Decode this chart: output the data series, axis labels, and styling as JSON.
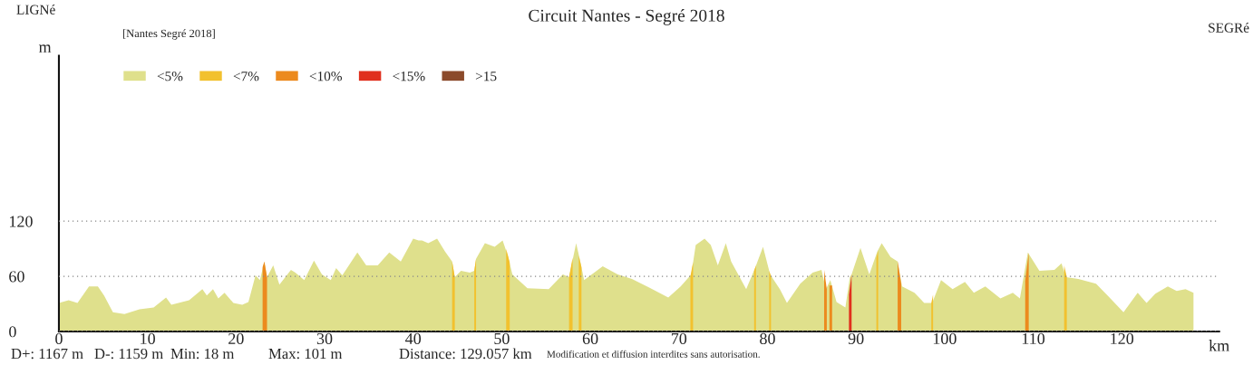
{
  "chart_data": {
    "type": "area",
    "title": "Circuit Nantes - Segré 2018",
    "xlabel": "km",
    "ylabel": "m",
    "xlim": [
      0,
      131
    ],
    "ylim": [
      0,
      300
    ],
    "xticks": [
      0,
      10,
      20,
      30,
      40,
      50,
      60,
      70,
      80,
      90,
      100,
      110,
      120
    ],
    "yticks": [
      0,
      60,
      120
    ],
    "grid": "y",
    "legend": "top left",
    "series": [
      {
        "name": "<5%",
        "color": "#dfe08c",
        "x": [
          0,
          1.1,
          2.1,
          3.4,
          4.4,
          5.1,
          6.1,
          7.4,
          9.1,
          10.7,
          12.1,
          12.7,
          14.7,
          16.2,
          16.7,
          17.4,
          18.0,
          18.7,
          19.7,
          20.7,
          21.4,
          22.2,
          22.7,
          23.2,
          23.5,
          24.2,
          24.9,
          26.2,
          26.7,
          27.7,
          28.8,
          29.7,
          30.7,
          31.3,
          32.0,
          33.7,
          34.7,
          36.0,
          37.3,
          38.6,
          40.0,
          40.6,
          41.0,
          41.7,
          42.7,
          43.6,
          44.4,
          44.7,
          45.4,
          46.4,
          46.9,
          47.1,
          48.1,
          49.2,
          50.1,
          50.7,
          51.2,
          52.9,
          55.3,
          56.9,
          57.6,
          58.4,
          58.8,
          59.3,
          61.4,
          63.1,
          64.7,
          66.8,
          68.8,
          70.2,
          71.4,
          71.9,
          72.9,
          73.6,
          74.4,
          75.3,
          75.9,
          77.6,
          78.6,
          79.5,
          80.3,
          81.4,
          82.2,
          83.7,
          85.1,
          86.1,
          86.6,
          87.1,
          87.8,
          88.8,
          89.3,
          89.5,
          90.5,
          91.5,
          92.4,
          92.9,
          93.9,
          94.7,
          95.2,
          96.6,
          97.7,
          98.6,
          99.6,
          100.9,
          102.3,
          103.3,
          104.6,
          106.3,
          107.7,
          108.5,
          109.4,
          110.7,
          112.4,
          113.2,
          113.7,
          115.1,
          117.1,
          118.4,
          120.2,
          121.8,
          122.8,
          123.8,
          125.2,
          126.2,
          127.2,
          128.1
        ],
        "values": [
          31,
          34,
          31,
          49,
          49,
          39,
          21,
          19,
          24,
          26,
          37,
          29,
          34,
          46,
          39,
          46,
          36,
          42,
          31,
          29,
          32,
          61,
          56,
          76,
          59,
          72,
          51,
          67,
          64,
          56,
          77,
          62,
          56,
          69,
          61,
          86,
          72,
          72,
          86,
          76,
          101,
          99,
          99,
          96,
          101,
          87,
          76,
          59,
          66,
          64,
          66,
          79,
          96,
          92,
          99,
          82,
          62,
          47,
          46,
          62,
          59,
          96,
          79,
          56,
          71,
          62,
          57,
          47,
          37,
          49,
          62,
          94,
          101,
          94,
          72,
          96,
          76,
          46,
          69,
          92,
          62,
          46,
          31,
          52,
          64,
          67,
          46,
          56,
          32,
          26,
          59,
          62,
          91,
          62,
          87,
          96,
          81,
          76,
          49,
          42,
          31,
          31,
          56,
          46,
          54,
          42,
          49,
          36,
          42,
          36,
          86,
          66,
          67,
          74,
          59,
          57,
          52,
          39,
          21,
          42,
          31,
          41,
          49,
          44,
          46,
          42
        ]
      },
      {
        "name": "<7%",
        "color": "#f2c12e",
        "x": [
          44.4,
          44.7,
          null,
          46.9,
          47.1,
          null,
          50.5,
          50.9,
          null,
          57.6,
          58.0,
          null,
          58.7,
          59.0,
          null,
          71.3,
          71.6,
          null,
          78.5,
          78.7,
          null,
          80.2,
          80.4,
          null,
          92.3,
          92.5,
          null,
          98.5,
          98.7,
          null,
          113.5,
          113.8
        ],
        "values": [
          76,
          59,
          null,
          66,
          79,
          null,
          90,
          75,
          null,
          59,
          80,
          null,
          82,
          70,
          null,
          60,
          75,
          null,
          66,
          72,
          null,
          66,
          60,
          null,
          80,
          88,
          null,
          31,
          40,
          null,
          72,
          59
        ]
      },
      {
        "name": "<10%",
        "color": "#ec8a1e",
        "x": [
          23.0,
          23.2,
          23.5,
          null,
          86.4,
          86.7,
          null,
          87.0,
          87.3,
          null,
          94.7,
          95.1,
          null,
          109.1,
          109.5
        ],
        "values": [
          70,
          76,
          59,
          null,
          67,
          46,
          null,
          50,
          50,
          null,
          76,
          52,
          null,
          55,
          86
        ]
      },
      {
        "name": "<15%",
        "color": "#e0301e",
        "x": [
          89.2,
          89.5
        ],
        "values": [
          40,
          62
        ]
      },
      {
        "name": ">15",
        "color": "#8b4a2b"
      }
    ],
    "annotations": [
      "LIGNé",
      "[Nantes Segré 2018]",
      "SEGRé",
      "D+: 1167 m",
      "D-: 1159 m",
      "Min: 18 m",
      "Max: 101 m",
      "Distance: 129.057 km",
      "Modification et diffusion interdites sans autorisation."
    ]
  }
}
